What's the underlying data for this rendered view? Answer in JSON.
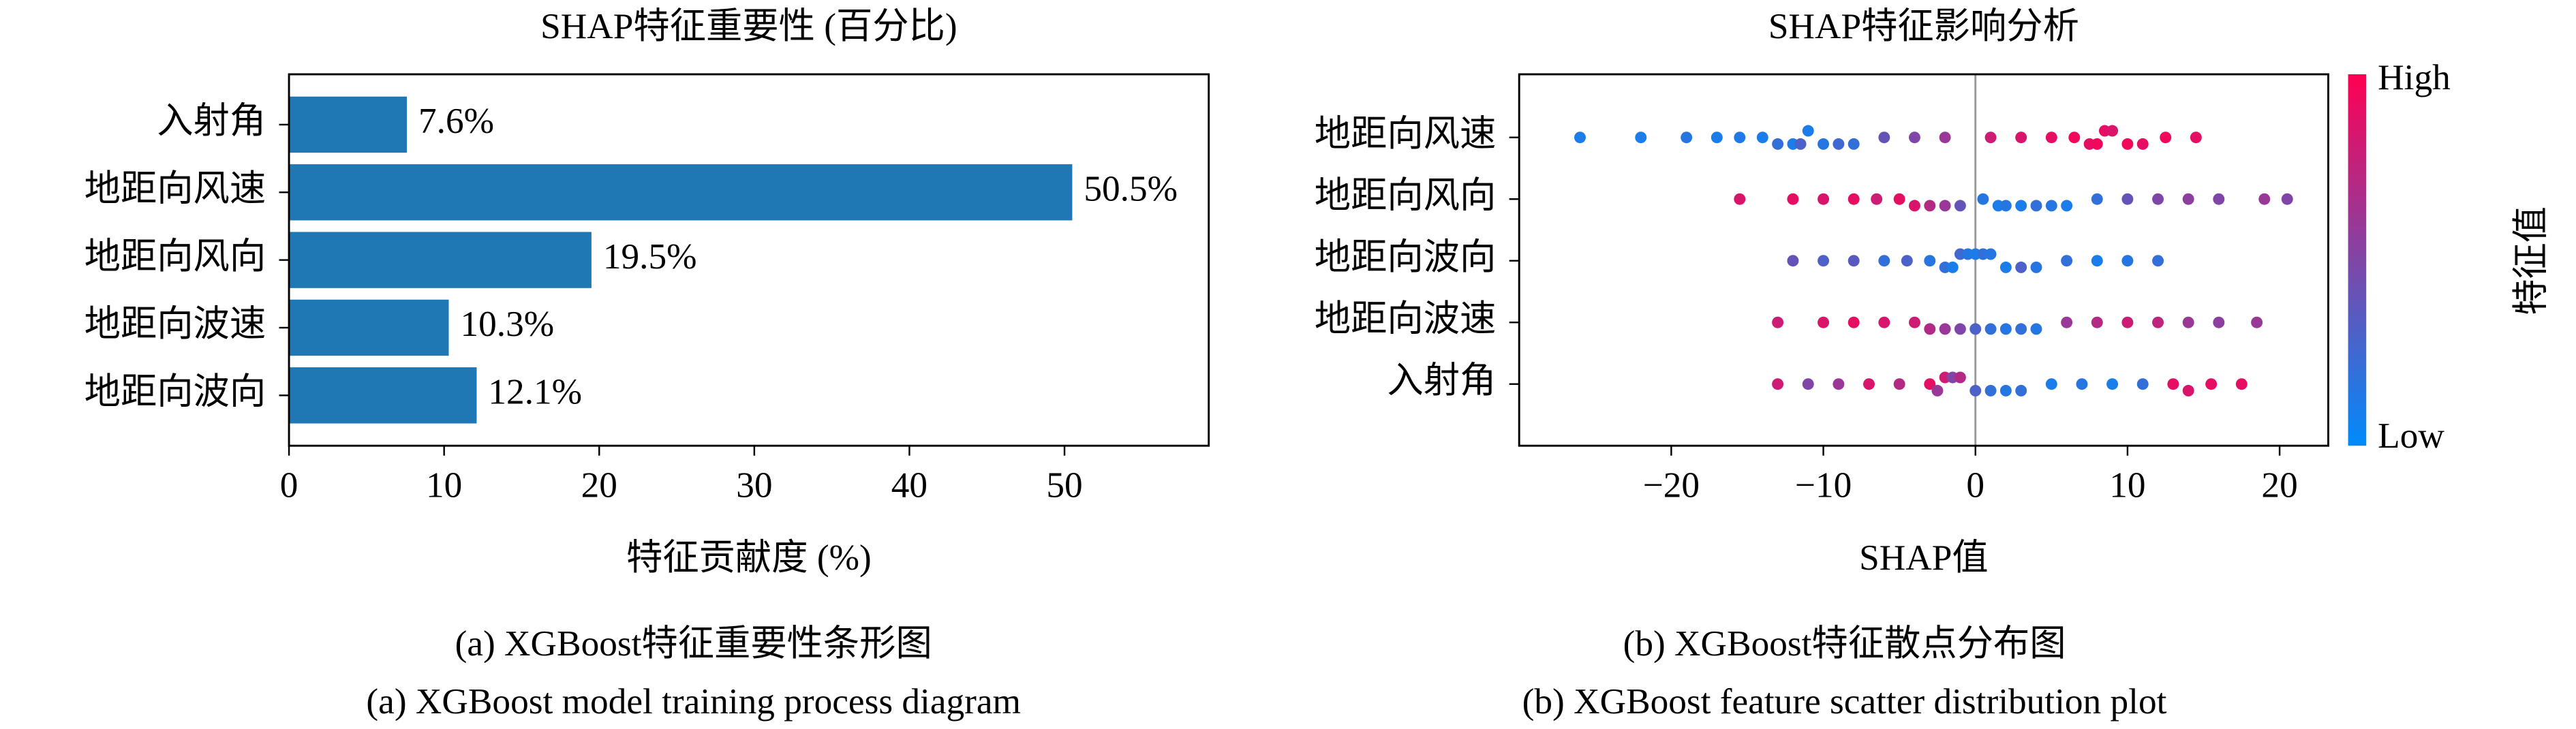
{
  "chart_data": [
    {
      "type": "bar",
      "orientation": "horizontal",
      "title": "SHAP特征重要性 (百分比)",
      "xlabel": "特征贡献度 (%)",
      "categories": [
        "入射角",
        "地距向风速",
        "地距向风向",
        "地距向波速",
        "地距向波向"
      ],
      "values": [
        7.6,
        50.5,
        19.5,
        10.3,
        12.1
      ],
      "value_labels": [
        "7.6%",
        "50.5%",
        "19.5%",
        "10.3%",
        "12.1%"
      ],
      "color": "#1f77b4",
      "xlim": [
        0,
        59.3
      ],
      "xticks": [
        0,
        10,
        20,
        30,
        40,
        50
      ]
    },
    {
      "type": "beeswarm",
      "title": "SHAP特征影响分析",
      "xlabel": "SHAP值",
      "categories": [
        "地距向风速",
        "地距向风向",
        "地距向波向",
        "地距向波速",
        "入射角"
      ],
      "rows": [
        {
          "shap": [
            -26,
            -22,
            -19,
            -17,
            -15.5,
            -14,
            -13,
            -12,
            -11.5,
            -11,
            -10,
            -9,
            -8,
            -6,
            -4,
            -2,
            1,
            3,
            5,
            6.5,
            7.5,
            8,
            8.5,
            9,
            10,
            11,
            12.5,
            14.5
          ],
          "feature": [
            0.1,
            0.1,
            0.15,
            0.1,
            0.12,
            0.1,
            0.2,
            0.1,
            0.3,
            0.1,
            0.15,
            0.25,
            0.2,
            0.4,
            0.5,
            0.6,
            0.8,
            0.85,
            0.9,
            0.95,
            0.9,
            0.95,
            0.9,
            0.85,
            0.95,
            0.9,
            0.95,
            0.9
          ]
        },
        {
          "shap": [
            -15.5,
            -12,
            -10,
            -8,
            -6.5,
            -5,
            -4,
            -3,
            -2,
            -1,
            0.5,
            1.5,
            2,
            3,
            4,
            5,
            6,
            8,
            10,
            12,
            14,
            16,
            19,
            20.5
          ],
          "feature": [
            0.85,
            0.9,
            0.85,
            0.9,
            0.8,
            0.9,
            0.85,
            0.7,
            0.6,
            0.4,
            0.15,
            0.1,
            0.15,
            0.1,
            0.2,
            0.15,
            0.1,
            0.2,
            0.4,
            0.5,
            0.55,
            0.5,
            0.6,
            0.5
          ]
        },
        {
          "shap": [
            -12,
            -10,
            -8,
            -6,
            -4.5,
            -3,
            -2,
            -1.5,
            -1,
            -0.5,
            0,
            0.5,
            1,
            2,
            3,
            4,
            6,
            8,
            10,
            12
          ],
          "feature": [
            0.4,
            0.3,
            0.35,
            0.2,
            0.3,
            0.15,
            0.2,
            0.1,
            0.25,
            0.15,
            0.1,
            0.2,
            0.15,
            0.1,
            0.3,
            0.15,
            0.2,
            0.1,
            0.15,
            0.2
          ]
        },
        {
          "shap": [
            -13,
            -10,
            -8,
            -6,
            -4,
            -3,
            -2,
            -1,
            0,
            1,
            2,
            3,
            4,
            6,
            8,
            10,
            12,
            14,
            16,
            18.5
          ],
          "feature": [
            0.8,
            0.85,
            0.9,
            0.85,
            0.8,
            0.7,
            0.6,
            0.5,
            0.3,
            0.2,
            0.15,
            0.2,
            0.15,
            0.6,
            0.7,
            0.8,
            0.75,
            0.6,
            0.55,
            0.6
          ]
        },
        {
          "shap": [
            -13,
            -11,
            -9,
            -7,
            -5,
            -3,
            -2.5,
            -2,
            -1.5,
            -1,
            0,
            1,
            2,
            3,
            5,
            7,
            9,
            11,
            13,
            14,
            15.5,
            17.5
          ],
          "feature": [
            0.8,
            0.5,
            0.6,
            0.85,
            0.7,
            0.9,
            0.6,
            0.8,
            0.5,
            0.7,
            0.3,
            0.2,
            0.15,
            0.2,
            0.1,
            0.15,
            0.1,
            0.2,
            0.9,
            0.85,
            0.9,
            0.9
          ]
        }
      ],
      "colormap": [
        "#008bfb",
        "#ff0052"
      ],
      "colorbar_label": "特征值",
      "colorbar_low": "Low",
      "colorbar_high": "High",
      "xlim": [
        -30,
        23.2
      ],
      "xticks": [
        {
          "value": -20,
          "label": "−20"
        },
        {
          "value": -10,
          "label": "−10"
        },
        0,
        10,
        20
      ]
    }
  ],
  "captions": [
    [
      "(a) XGBoost特征重要性条形图",
      "(a) XGBoost model training process diagram"
    ],
    [
      "(b) XGBoost特征散点分布图",
      "(b) XGBoost feature scatter distribution plot"
    ]
  ]
}
